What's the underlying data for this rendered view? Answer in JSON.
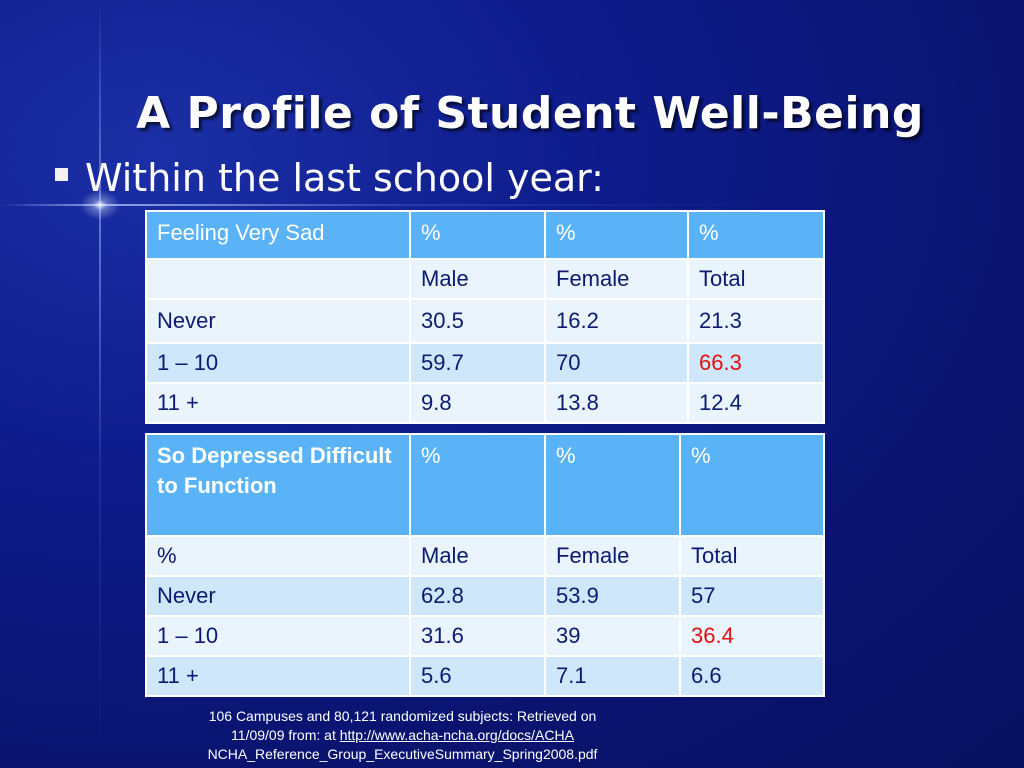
{
  "slide": {
    "title": "A Profile of Student Well-Being",
    "bullet": "Within the last school year:"
  },
  "table1": {
    "header": [
      "Feeling  Very Sad",
      "%",
      "%",
      "%"
    ],
    "rows": [
      [
        "",
        "Male",
        "Female",
        "Total"
      ],
      [
        "Never",
        "30.5",
        "16.2",
        "21.3"
      ],
      [
        "1 – 10",
        "59.7",
        "70",
        "66.3"
      ],
      [
        "11 +",
        "9.8",
        "13.8",
        "12.4"
      ]
    ]
  },
  "table2": {
    "header": [
      "So Depressed Difficult to Function",
      "%",
      "%",
      "%"
    ],
    "rows": [
      [
        "%",
        "Male",
        "Female",
        "Total"
      ],
      [
        "Never",
        "62.8",
        "53.9",
        "57"
      ],
      [
        "1 – 10",
        "31.6",
        "39",
        "36.4"
      ],
      [
        "11 +",
        "5.6",
        "7.1",
        "6.6"
      ]
    ]
  },
  "footnote": {
    "line1": "106 Campuses and 80,121 randomized subjects: Retrieved on",
    "line2_prefix": "11/09/09 from: at ",
    "link": "http://www.acha-ncha.org/docs/ACHA",
    "line3": "NCHA_Reference_Group_ExecutiveSummary_Spring2008.pdf"
  },
  "colors": {
    "background": "#0e1c8c",
    "header_cell": "#5ab3f6",
    "row_light": "#e9f4fd",
    "row_tint": "#cfe7fb",
    "highlight": "#e01010"
  }
}
